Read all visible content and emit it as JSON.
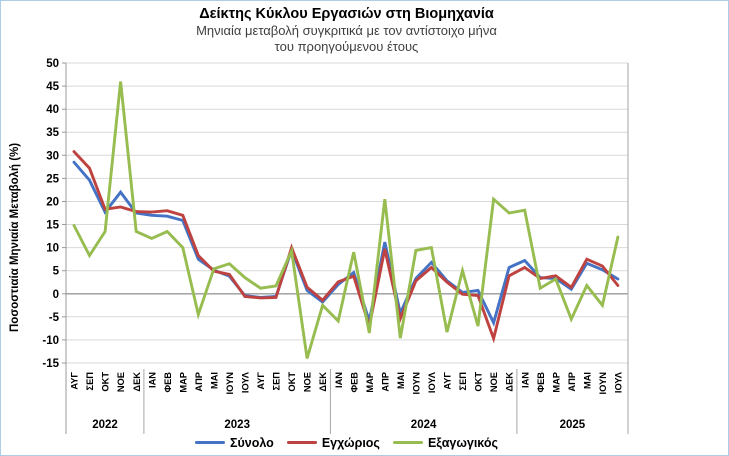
{
  "chart_data": {
    "type": "line",
    "title": "Δείκτης Κύκλου Εργασιών στη Βιομηχανία",
    "subtitle_lines": [
      "Μηνιαία μεταβολή συγκριτικά με τον αντίστοιχο μήνα",
      "του προηγούμενου έτους"
    ],
    "ylabel": "Ποσοστιαία Μηνιαία Μεταβολή (%)",
    "ylim": [
      -15,
      50
    ],
    "ytick_step": 5,
    "yticks": [
      50,
      45,
      40,
      35,
      30,
      25,
      20,
      15,
      10,
      5,
      0,
      -5,
      -10,
      -15
    ],
    "grid": true,
    "legend_position": "bottom",
    "months": [
      "ΑΥΓ",
      "ΣΕΠ",
      "ΟΚΤ",
      "ΝΟΕ",
      "ΔΕΚ",
      "ΙΑΝ",
      "ΦΕΒ",
      "ΜΑΡ",
      "ΑΠΡ",
      "ΜΑΙ",
      "ΙΟΥΝ",
      "ΙΟΥΛ",
      "ΑΥΓ",
      "ΣΕΠ",
      "ΟΚΤ",
      "ΝΟΕ",
      "ΔΕΚ",
      "ΙΑΝ",
      "ΦΕΒ",
      "ΜΑΡ",
      "ΑΠΡ",
      "ΜΑΙ",
      "ΙΟΥΝ",
      "ΙΟΥΛ",
      "ΑΥΓ",
      "ΣΕΠ",
      "ΟΚΤ",
      "ΝΟΕ",
      "ΔΕΚ",
      "ΙΑΝ",
      "ΦΕΒ",
      "ΜΑΡ",
      "ΑΠΡ",
      "ΜΑΙ",
      "ΙΟΥΝ",
      "ΙΟΥΛ"
    ],
    "year_groups": [
      {
        "label": "2022",
        "count": 5
      },
      {
        "label": "2023",
        "count": 12
      },
      {
        "label": "2024",
        "count": 12
      },
      {
        "label": "2025",
        "count": 7
      }
    ],
    "series": [
      {
        "name": "Σύνολο",
        "color": "#4472C4",
        "values": [
          28.5,
          24.6,
          17.7,
          22.0,
          17.5,
          17.0,
          16.8,
          15.9,
          7.5,
          5.1,
          3.8,
          -0.4,
          -0.8,
          -0.6,
          9.5,
          0.7,
          -1.8,
          2.0,
          4.6,
          -5.9,
          11.2,
          -4.2,
          3.3,
          6.8,
          2.8,
          0.3,
          0.7,
          -6.3,
          5.7,
          7.2,
          3.5,
          3.3,
          1.0,
          6.6,
          5.2,
          3.2
        ]
      },
      {
        "name": "Εγχώριος",
        "color": "#BE4340",
        "values": [
          30.8,
          27.2,
          18.3,
          18.8,
          17.8,
          17.7,
          18.0,
          17.0,
          8.3,
          4.9,
          4.2,
          -0.6,
          -0.9,
          -0.8,
          10.0,
          1.4,
          -1.4,
          2.6,
          3.8,
          -7.0,
          9.7,
          -5.4,
          2.8,
          5.7,
          2.5,
          -0.1,
          -0.4,
          -9.7,
          3.9,
          5.7,
          3.3,
          3.9,
          1.4,
          7.5,
          6.0,
          1.8
        ]
      },
      {
        "name": "Εξαγωγικός",
        "color": "#97BC4F",
        "values": [
          14.8,
          8.3,
          13.5,
          46.0,
          13.5,
          12.0,
          13.5,
          10.0,
          -4.5,
          5.4,
          6.5,
          3.5,
          1.2,
          1.7,
          9.3,
          -14.0,
          -2.5,
          -5.9,
          9.0,
          -8.5,
          20.5,
          -9.6,
          9.4,
          10.0,
          -8.3,
          5.0,
          -7.0,
          20.5,
          17.5,
          18.1,
          1.2,
          3.2,
          -5.5,
          1.8,
          -2.5,
          12.3
        ]
      }
    ]
  }
}
